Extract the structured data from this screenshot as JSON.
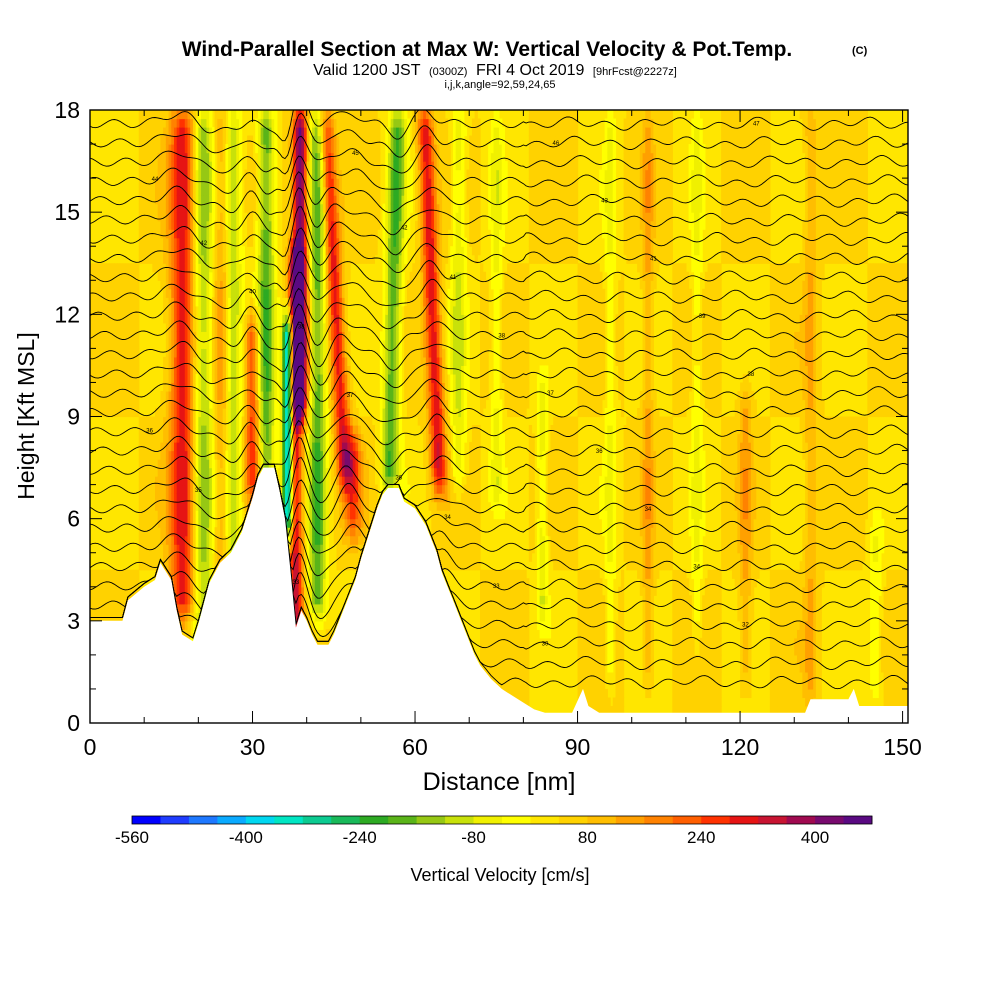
{
  "chart_data": {
    "type": "heatmap",
    "title": "Wind-Parallel Section at Max W: Vertical Velocity & Pot.Temp.",
    "title_mark": "(C)",
    "subtitle_valid": "Valid 1200 JST",
    "subtitle_utc": "(0300Z)",
    "subtitle_date": "FRI 4 Oct 2019",
    "subtitle_fcst": "[9hrFcst@2227z]",
    "subtitle_ijk": "i,j,k,angle=92,59,24,65",
    "xlabel": "Distance [nm]",
    "ylabel": "Height [Kft MSL]",
    "xlim": [
      0,
      151
    ],
    "ylim": [
      0,
      18
    ],
    "x_ticks": [
      0,
      30,
      60,
      90,
      120,
      150
    ],
    "y_ticks": [
      0,
      3,
      6,
      9,
      12,
      15,
      18
    ],
    "colorbar_label": "Vertical Velocity [cm/s]",
    "colorbar_ticks": [
      "-560",
      "-400",
      "-240",
      "-80",
      "80",
      "240",
      "400"
    ],
    "colorbar_range": [
      -560,
      480
    ],
    "colorbar_colors": [
      "#0000ff",
      "#1f3cff",
      "#1e78ff",
      "#0aaaff",
      "#00d7f0",
      "#00e6c3",
      "#0ccb91",
      "#19b95a",
      "#2daa23",
      "#5ab419",
      "#96c814",
      "#c8e10a",
      "#f0f000",
      "#ffff00",
      "#ffe600",
      "#ffd200",
      "#ffbe00",
      "#ffa000",
      "#ff8200",
      "#ff5f00",
      "#ff3200",
      "#e61414",
      "#c81432",
      "#a00a50",
      "#780a6e",
      "#5a0a82"
    ],
    "background_value": 40,
    "waves": [
      {
        "x": 17.5,
        "w": 2.6,
        "amp": 300,
        "y0": 3.0,
        "y1": 18,
        "lean": 0.0
      },
      {
        "x": 20.5,
        "w": 2.4,
        "amp": -220,
        "y0": 2.5,
        "y1": 18,
        "lean": 0.0
      },
      {
        "x": 24,
        "w": 1.6,
        "amp": 110,
        "y0": 3.5,
        "y1": 18,
        "lean": 0.0
      },
      {
        "x": 26.5,
        "w": 1.6,
        "amp": -150,
        "y0": 4.0,
        "y1": 18,
        "lean": 0.0
      },
      {
        "x": 30,
        "w": 1.4,
        "amp": 220,
        "y0": 6.5,
        "y1": 12,
        "lean": 0.0
      },
      {
        "x": 32.5,
        "w": 1.6,
        "amp": -230,
        "y0": 5.5,
        "y1": 18,
        "lean": 0.0
      },
      {
        "x": 36.5,
        "w": 1.0,
        "amp": -470,
        "y0": 5.5,
        "y1": 12,
        "lean": 0.0
      },
      {
        "x": 38,
        "w": 1.3,
        "amp": 300,
        "y0": 2.5,
        "y1": 14,
        "lean": 0.0
      },
      {
        "x": 38.8,
        "w": 1.4,
        "amp": 420,
        "y0": 9.0,
        "y1": 18,
        "lean": 0.0
      },
      {
        "x": 42,
        "w": 1.6,
        "amp": -230,
        "y0": 3.0,
        "y1": 18,
        "lean": 0.0
      },
      {
        "x": 46.5,
        "w": 1.5,
        "amp": 260,
        "y0": 7.0,
        "y1": 18,
        "lean": -0.35
      },
      {
        "x": 55.5,
        "w": 1.6,
        "amp": -230,
        "y0": 6.8,
        "y1": 18,
        "lean": 0.15
      },
      {
        "x": 64,
        "w": 1.5,
        "amp": 270,
        "y0": 6.8,
        "y1": 18,
        "lean": -0.25
      },
      {
        "x": 68,
        "w": 1.4,
        "amp": -120,
        "y0": 6.8,
        "y1": 18,
        "lean": 0.0
      },
      {
        "x": 48.5,
        "w": 1.8,
        "amp": 180,
        "y0": 5.5,
        "y1": 8.5,
        "lean": 0.0
      },
      {
        "x": 75,
        "w": 1.1,
        "amp": -90,
        "y0": 6.5,
        "y1": 18,
        "lean": 0.0
      },
      {
        "x": 83.5,
        "w": 1.0,
        "amp": -110,
        "y0": 3.0,
        "y1": 10,
        "lean": 0.0
      },
      {
        "x": 96,
        "w": 1.0,
        "amp": -80,
        "y0": 1.0,
        "y1": 18,
        "lean": 0.0
      },
      {
        "x": 103,
        "w": 1.0,
        "amp": 90,
        "y0": 1.0,
        "y1": 18,
        "lean": 0.0
      },
      {
        "x": 112,
        "w": 1.0,
        "amp": -80,
        "y0": 2.0,
        "y1": 18,
        "lean": 0.0
      },
      {
        "x": 121,
        "w": 1.2,
        "amp": 90,
        "y0": 1.0,
        "y1": 10,
        "lean": 0.0
      },
      {
        "x": 133,
        "w": 1.2,
        "amp": 80,
        "y0": 0.5,
        "y1": 18,
        "lean": 0.0
      },
      {
        "x": 145,
        "w": 1.2,
        "amp": -80,
        "y0": 0.5,
        "y1": 6,
        "lean": 0.0
      }
    ],
    "terrain": [
      [
        0,
        3.0
      ],
      [
        6,
        3.0
      ],
      [
        7,
        3.6
      ],
      [
        10,
        4.0
      ],
      [
        12,
        4.2
      ],
      [
        13,
        4.7
      ],
      [
        15,
        4.2
      ],
      [
        16,
        3.3
      ],
      [
        17,
        2.6
      ],
      [
        19,
        2.4
      ],
      [
        20,
        2.9
      ],
      [
        21,
        3.5
      ],
      [
        22,
        4.1
      ],
      [
        24,
        4.7
      ],
      [
        26,
        5.0
      ],
      [
        28,
        5.6
      ],
      [
        30,
        6.6
      ],
      [
        31,
        7.2
      ],
      [
        32,
        7.5
      ],
      [
        34,
        7.5
      ],
      [
        35,
        6.8
      ],
      [
        36,
        6.0
      ],
      [
        37,
        4.5
      ],
      [
        38,
        2.8
      ],
      [
        39,
        3.3
      ],
      [
        40,
        3.0
      ],
      [
        41,
        2.6
      ],
      [
        42,
        2.3
      ],
      [
        44,
        2.3
      ],
      [
        45,
        2.6
      ],
      [
        46,
        3.0
      ],
      [
        47,
        3.4
      ],
      [
        48,
        3.8
      ],
      [
        49,
        4.2
      ],
      [
        50,
        4.8
      ],
      [
        51,
        5.3
      ],
      [
        52,
        5.8
      ],
      [
        53,
        6.3
      ],
      [
        54,
        6.7
      ],
      [
        55,
        6.9
      ],
      [
        57,
        6.9
      ],
      [
        58,
        6.5
      ],
      [
        60,
        6.3
      ],
      [
        62,
        5.8
      ],
      [
        64,
        5.0
      ],
      [
        65,
        4.4
      ],
      [
        66,
        4.0
      ],
      [
        67,
        3.6
      ],
      [
        68,
        3.2
      ],
      [
        69,
        2.8
      ],
      [
        70,
        2.4
      ],
      [
        71,
        2.0
      ],
      [
        72,
        1.7
      ],
      [
        74,
        1.3
      ],
      [
        76,
        1.0
      ],
      [
        78,
        0.8
      ],
      [
        80,
        0.6
      ],
      [
        82,
        0.4
      ],
      [
        84,
        0.3
      ],
      [
        89,
        0.3
      ],
      [
        91,
        1.0
      ],
      [
        92,
        0.5
      ],
      [
        94,
        0.3
      ],
      [
        132,
        0.3
      ],
      [
        133,
        0.7
      ],
      [
        140,
        0.7
      ],
      [
        141,
        1.0
      ],
      [
        142,
        0.5
      ],
      [
        151,
        0.5
      ]
    ],
    "theta_contours": {
      "count": 30,
      "labels": [
        "28",
        "30",
        "30",
        "32",
        "33",
        "33",
        "34",
        "34",
        "34",
        "34",
        "35",
        "36",
        "36",
        "36",
        "37",
        "37",
        "38",
        "38",
        "38",
        "39",
        "40",
        "41",
        "41",
        "42",
        "42",
        "43",
        "44",
        "45",
        "46",
        "47"
      ]
    }
  }
}
